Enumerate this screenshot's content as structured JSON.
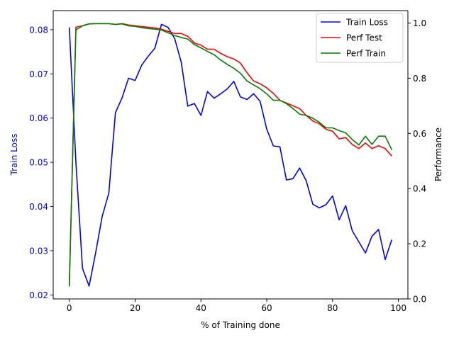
{
  "chart_data": {
    "type": "line",
    "xlabel": "% of Training done",
    "ylabel_left": "Train Loss",
    "ylabel_right": "Performance",
    "xlim": [
      -4.9,
      102.9
    ],
    "ylim_left": [
      0.0191,
      0.0843
    ],
    "ylim_right": [
      0.0,
      1.045
    ],
    "xticks": [
      0,
      20,
      40,
      60,
      80,
      100
    ],
    "yticks_left": [
      0.02,
      0.03,
      0.04,
      0.05,
      0.06,
      0.07,
      0.08
    ],
    "yticks_right": [
      0.0,
      0.2,
      0.4,
      0.6,
      0.8,
      1.0
    ],
    "grid": false,
    "legend_position": "top-right",
    "left_axis_color": "#0000ff",
    "x": [
      0,
      2,
      4,
      6,
      8,
      10,
      12,
      14,
      16,
      18,
      20,
      22,
      24,
      26,
      28,
      30,
      32,
      34,
      36,
      38,
      40,
      42,
      44,
      46,
      48,
      50,
      52,
      54,
      56,
      58,
      60,
      62,
      64,
      66,
      68,
      70,
      72,
      74,
      76,
      78,
      80,
      82,
      84,
      86,
      88,
      90,
      92,
      94,
      96,
      98
    ],
    "series": [
      {
        "name": "Train Loss",
        "axis": "left",
        "color": "#0000ff",
        "values": [
          0.0805,
          0.05,
          0.026,
          0.022,
          0.0295,
          0.0378,
          0.043,
          0.0612,
          0.0645,
          0.069,
          0.0685,
          0.072,
          0.074,
          0.0758,
          0.0812,
          0.0805,
          0.078,
          0.0727,
          0.0627,
          0.0633,
          0.0606,
          0.066,
          0.0645,
          0.0655,
          0.0666,
          0.0683,
          0.0648,
          0.0642,
          0.0655,
          0.0638,
          0.0575,
          0.0537,
          0.0535,
          0.046,
          0.0463,
          0.0487,
          0.0458,
          0.0405,
          0.0397,
          0.0404,
          0.0424,
          0.037,
          0.0402,
          0.0345,
          0.032,
          0.0295,
          0.0333,
          0.0348,
          0.028,
          0.0325
        ]
      },
      {
        "name": "Perf Test",
        "axis": "right",
        "color": "#ff0000",
        "values": [
          0.05,
          0.985,
          0.99,
          0.997,
          0.998,
          0.998,
          0.998,
          0.995,
          0.998,
          0.993,
          0.99,
          0.987,
          0.985,
          0.982,
          0.978,
          0.97,
          0.962,
          0.962,
          0.952,
          0.928,
          0.92,
          0.905,
          0.905,
          0.89,
          0.878,
          0.87,
          0.855,
          0.82,
          0.79,
          0.78,
          0.765,
          0.745,
          0.72,
          0.71,
          0.7,
          0.69,
          0.665,
          0.645,
          0.635,
          0.615,
          0.608,
          0.58,
          0.585,
          0.56,
          0.545,
          0.565,
          0.545,
          0.555,
          0.545,
          0.518
        ]
      },
      {
        "name": "Perf Train",
        "axis": "right",
        "color": "#008000",
        "values": [
          0.045,
          0.975,
          0.99,
          0.997,
          0.998,
          0.998,
          0.998,
          0.995,
          0.997,
          0.99,
          0.988,
          0.983,
          0.98,
          0.978,
          0.975,
          0.965,
          0.955,
          0.948,
          0.942,
          0.922,
          0.91,
          0.897,
          0.885,
          0.866,
          0.85,
          0.836,
          0.818,
          0.79,
          0.776,
          0.762,
          0.743,
          0.72,
          0.72,
          0.708,
          0.69,
          0.67,
          0.665,
          0.655,
          0.64,
          0.62,
          0.62,
          0.61,
          0.602,
          0.578,
          0.558,
          0.59,
          0.56,
          0.59,
          0.59,
          0.54
        ]
      }
    ]
  }
}
